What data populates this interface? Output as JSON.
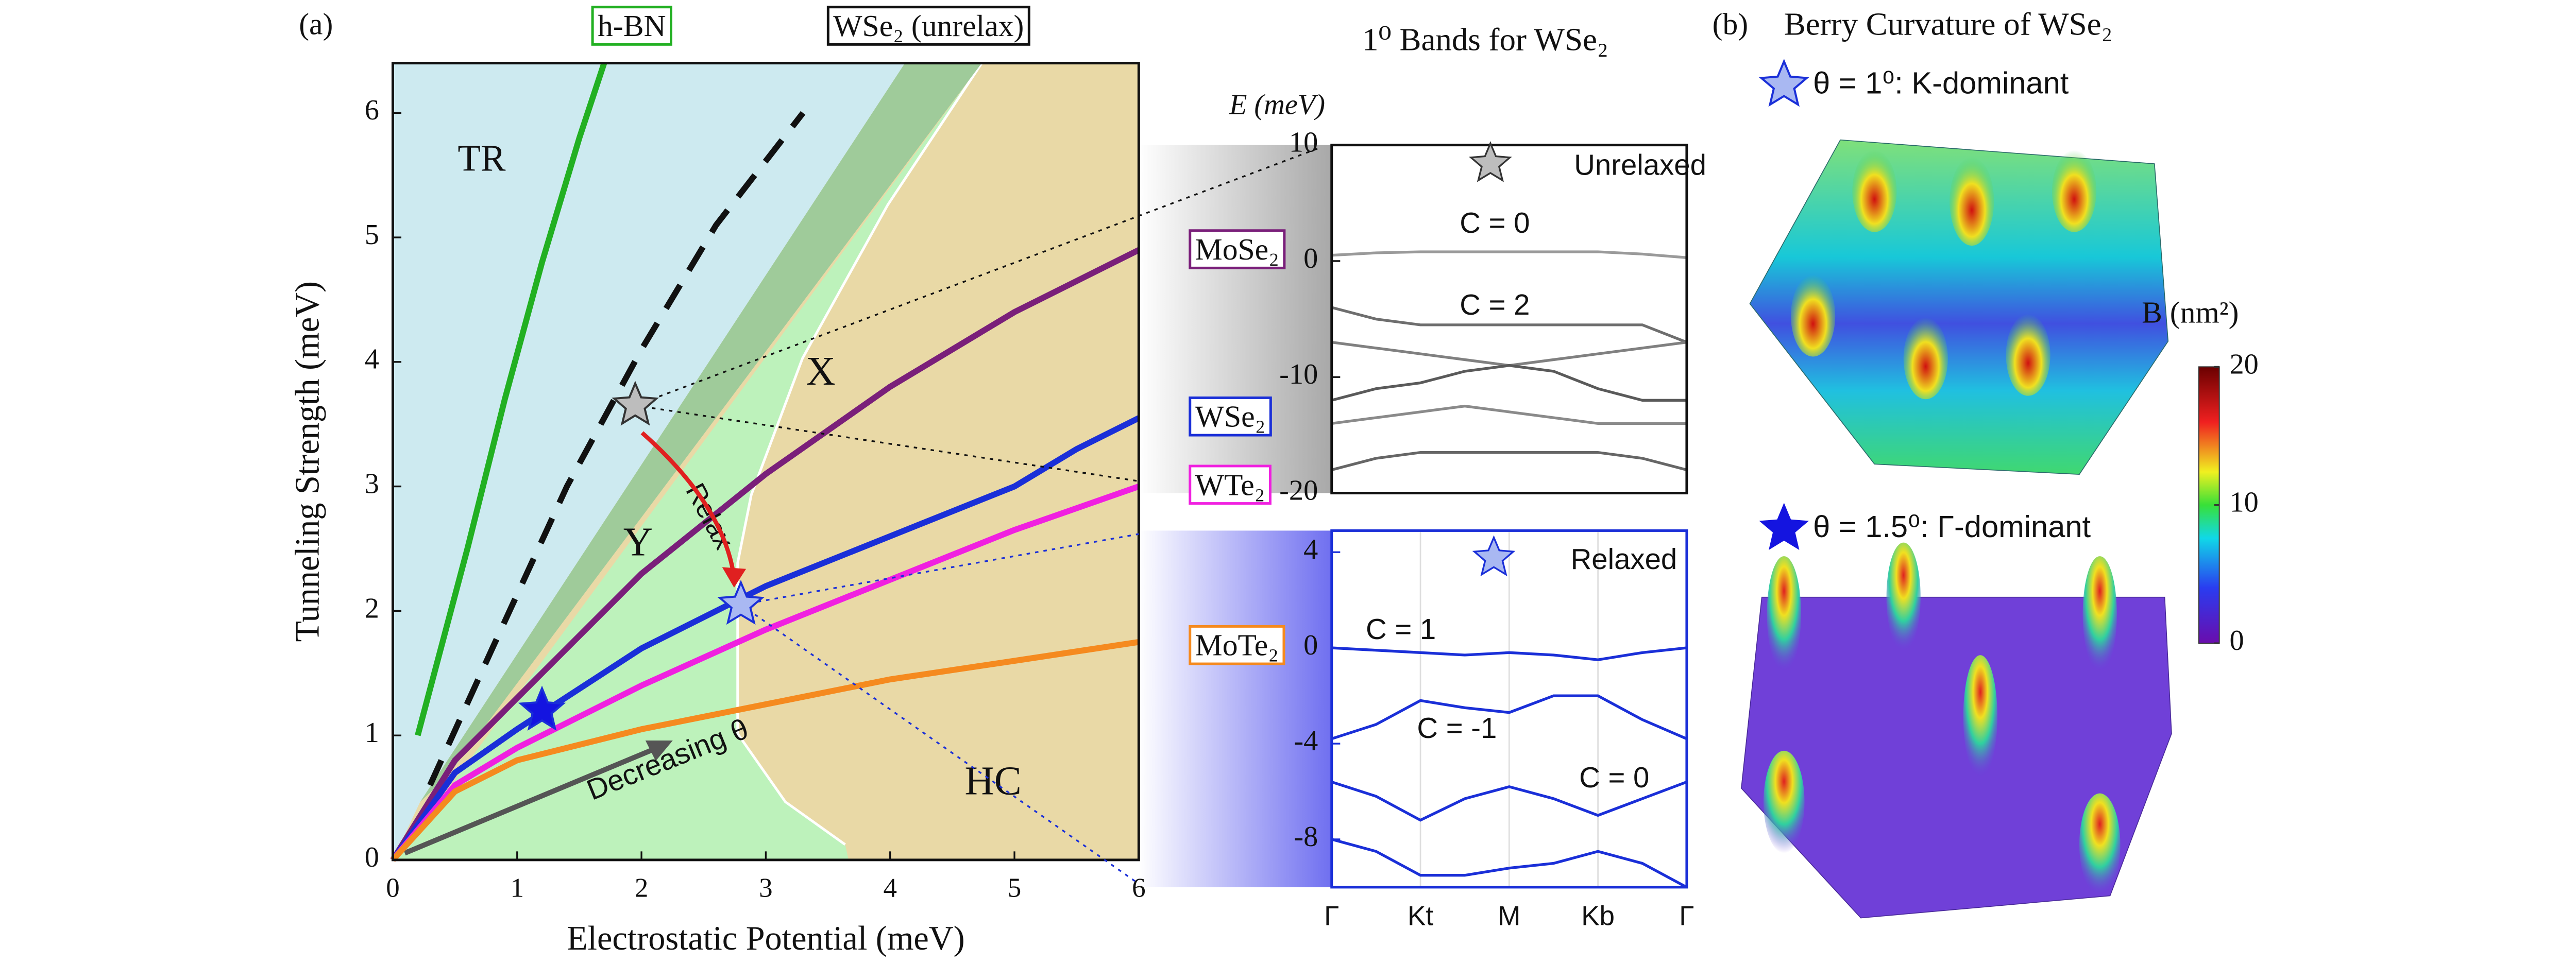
{
  "panel_a_label": "(a)",
  "panel_b": {
    "label": "(b)",
    "title": "Berry Curvature of WSe₂",
    "top_caption": "θ = 1⁰: K-dominant",
    "bottom_caption": "θ = 1.5⁰: Γ-dominant"
  },
  "chart_data": [
    {
      "type": "line",
      "xlabel": "Electrostatic Potential  (meV)",
      "ylabel": "Tunneling Strength (meV)",
      "xlim": [
        0,
        6
      ],
      "ylim": [
        0,
        6.4
      ],
      "xticks": [
        0,
        1,
        2,
        3,
        4,
        5,
        6
      ],
      "yticks": [
        0,
        1,
        2,
        3,
        4,
        5,
        6
      ],
      "region_labels": [
        "TR",
        "X",
        "Y",
        "HC"
      ],
      "annotations": [
        "Relax",
        "Decreasing θ"
      ],
      "series": [
        {
          "name": "h-BN",
          "color": "#22b022",
          "x": [
            0.2,
            0.6,
            0.9,
            1.2,
            1.5,
            1.7
          ],
          "values": [
            1.0,
            2.5,
            3.7,
            4.8,
            5.8,
            6.4
          ]
        },
        {
          "name": "WSe₂ (unrelax)",
          "color": "#111111",
          "dashed": true,
          "x": [
            0.3,
            0.8,
            1.4,
            2.0,
            2.6,
            3.3
          ],
          "values": [
            0.6,
            1.7,
            3.0,
            4.1,
            5.1,
            6.0
          ]
        },
        {
          "name": "MoSe₂",
          "color": "#7a1f7a",
          "x": [
            0,
            0.5,
            1,
            2,
            3,
            4,
            5,
            6
          ],
          "values": [
            0,
            0.8,
            1.3,
            2.3,
            3.1,
            3.8,
            4.4,
            4.9
          ]
        },
        {
          "name": "WSe₂",
          "color": "#1a2fd8",
          "x": [
            0,
            0.5,
            1,
            2,
            3,
            4,
            5,
            5.5,
            6
          ],
          "values": [
            0,
            0.7,
            1.05,
            1.7,
            2.2,
            2.6,
            3.0,
            3.3,
            3.55
          ]
        },
        {
          "name": "WTe₂",
          "color": "#f020e0",
          "x": [
            0,
            0.5,
            1,
            2,
            3,
            4,
            5,
            6
          ],
          "values": [
            0,
            0.6,
            0.9,
            1.4,
            1.85,
            2.25,
            2.65,
            3.0
          ]
        },
        {
          "name": "MoTe₂",
          "color": "#f58a1f",
          "x": [
            0,
            0.5,
            1,
            2,
            3,
            4,
            5,
            6
          ],
          "values": [
            0,
            0.55,
            0.8,
            1.05,
            1.25,
            1.45,
            1.6,
            1.75
          ]
        }
      ],
      "markers": [
        {
          "x": 1.95,
          "y": 3.65,
          "color": "#bdbdbd"
        },
        {
          "x": 2.8,
          "y": 2.05,
          "color": "#a9b8f2"
        },
        {
          "x": 1.2,
          "y": 1.2,
          "color": "#1414e0"
        }
      ]
    },
    {
      "type": "line",
      "title": "1⁰ Bands for WSe₂",
      "ylabel": "E  (meV)",
      "xlim": [
        0,
        4
      ],
      "ylim": [
        -20,
        10
      ],
      "yticks": [
        -20,
        -10,
        0,
        10
      ],
      "x": [
        0,
        0.5,
        1,
        1.5,
        2,
        2.5,
        3,
        3.5,
        4
      ],
      "annotations": [
        "Unrelaxed",
        "C = 0",
        "C = 2"
      ],
      "series": [
        {
          "color": "#9a9a9a",
          "values": [
            0.5,
            0.7,
            0.8,
            0.8,
            0.8,
            0.8,
            0.8,
            0.6,
            0.3
          ]
        },
        {
          "color": "#6e6e6e",
          "values": [
            -4,
            -5,
            -5.5,
            -5.5,
            -5.5,
            -5.5,
            -5.5,
            -5.5,
            -7
          ]
        },
        {
          "color": "#808080",
          "values": [
            -7,
            -7.5,
            -8,
            -8.5,
            -9,
            -8.5,
            -8,
            -7.5,
            -7
          ]
        },
        {
          "color": "#5a5a5a",
          "values": [
            -12,
            -11,
            -10.5,
            -9.5,
            -9,
            -9.5,
            -11,
            -12,
            -12
          ]
        },
        {
          "color": "#8a8a8a",
          "values": [
            -14,
            -13.5,
            -13,
            -12.5,
            -13,
            -13.5,
            -14,
            -14,
            -14
          ]
        },
        {
          "color": "#666666",
          "values": [
            -18,
            -17,
            -16.5,
            -16.5,
            -16.5,
            -16.5,
            -16.5,
            -17,
            -18
          ]
        }
      ]
    },
    {
      "type": "line",
      "xlim": [
        0,
        4
      ],
      "ylim": [
        -10,
        4.9
      ],
      "yticks": [
        -8,
        -4,
        0,
        4
      ],
      "xticks": [
        {
          "value": 0,
          "label": "Γ"
        },
        {
          "value": 1,
          "label": "Kt"
        },
        {
          "value": 2,
          "label": "M"
        },
        {
          "value": 3,
          "label": "Kb"
        },
        {
          "value": 4,
          "label": "Γ"
        }
      ],
      "grid": true,
      "frame_color": "#1a2fd8",
      "x": [
        0,
        0.5,
        1,
        1.5,
        2,
        2.5,
        3,
        3.5,
        4
      ],
      "annotations": [
        "Relaxed",
        "C = 1",
        "C = -1",
        "C = 0"
      ],
      "series": [
        {
          "color": "#1a2fd8",
          "values": [
            0,
            -0.1,
            -0.2,
            -0.3,
            -0.2,
            -0.3,
            -0.5,
            -0.2,
            0
          ]
        },
        {
          "color": "#1a2fd8",
          "values": [
            -3.8,
            -3.2,
            -2.2,
            -2.5,
            -2.7,
            -2,
            -2,
            -3,
            -3.8
          ]
        },
        {
          "color": "#1a2fd8",
          "values": [
            -5.6,
            -6.2,
            -7.2,
            -6.3,
            -5.8,
            -6.3,
            -7,
            -6.3,
            -5.6
          ]
        },
        {
          "color": "#1a2fd8",
          "values": [
            -8,
            -8.5,
            -9.5,
            -9.5,
            -9.2,
            -9,
            -8.5,
            -9,
            -10
          ]
        }
      ]
    },
    {
      "type": "colorbar",
      "label": "B (nm²)",
      "ylim": [
        0,
        20
      ],
      "yticks": [
        0,
        10,
        20
      ]
    }
  ]
}
